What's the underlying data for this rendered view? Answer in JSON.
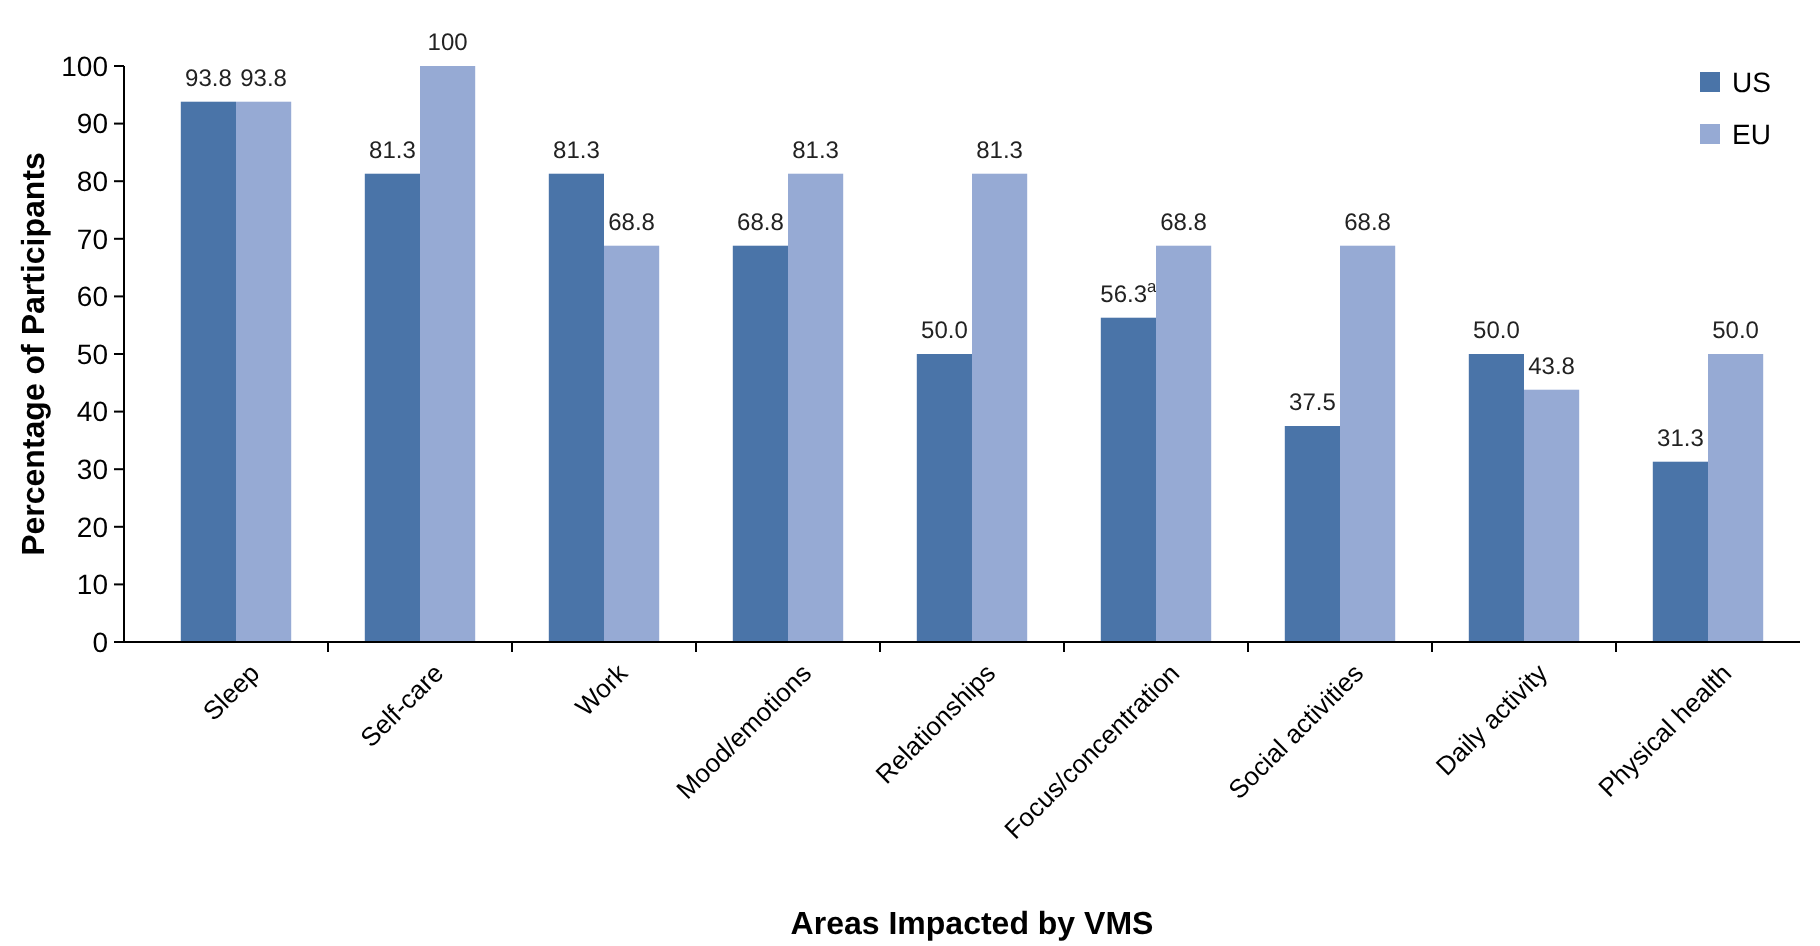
{
  "chart_data": {
    "type": "bar",
    "xlabel": "Areas Impacted by VMS",
    "ylabel": "Percentage of Participants",
    "categories": [
      "Sleep",
      "Self-care",
      "Work",
      "Mood/emotions",
      "Relationships",
      "Focus/concentration",
      "Social activities",
      "Daily activity",
      "Physical health"
    ],
    "series": [
      {
        "name": "US",
        "color": "#4a74a8",
        "values": [
          93.8,
          81.3,
          81.3,
          68.8,
          50.0,
          56.3,
          37.5,
          50.0,
          31.3
        ],
        "value_labels": [
          "93.8",
          "81.3",
          "81.3",
          "68.8",
          "50.0",
          "56.3$^{a}$",
          "37.5",
          "50.0",
          "31.3"
        ]
      },
      {
        "name": "EU",
        "color": "#96aad4",
        "values": [
          93.8,
          100,
          68.8,
          81.3,
          81.3,
          68.8,
          68.8,
          43.8,
          50.0
        ],
        "value_labels": [
          "93.8",
          "100",
          "68.8",
          "81.3",
          "81.3",
          "68.8",
          "68.8",
          "43.8",
          "50.0"
        ]
      }
    ],
    "ylim": [
      0,
      100
    ],
    "yticks": [
      0,
      10,
      20,
      30,
      40,
      50,
      60,
      70,
      80,
      90,
      100
    ],
    "grid": false,
    "legend": "top right"
  }
}
